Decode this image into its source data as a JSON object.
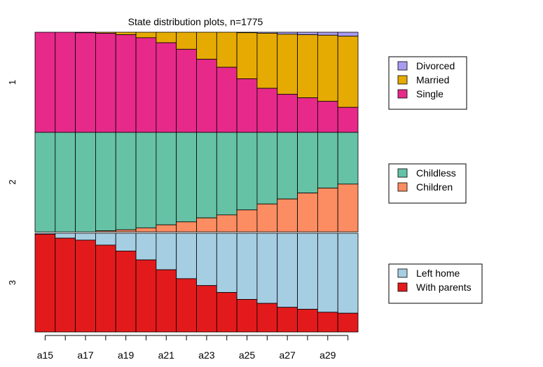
{
  "chart_data": {
    "type": "bar",
    "title": "State distribution plots, n=1775",
    "x": [
      "a15",
      "a16",
      "a17",
      "a18",
      "a19",
      "a20",
      "a21",
      "a22",
      "a23",
      "a24",
      "a25",
      "a26",
      "a27",
      "a28",
      "a29",
      "a30"
    ],
    "x_tick_labels": [
      "a15",
      "a17",
      "a19",
      "a21",
      "a23",
      "a25",
      "a27",
      "a29"
    ],
    "ylim": [
      0,
      1
    ],
    "grid": false,
    "legend_placement": "right",
    "panels": [
      {
        "label": "1",
        "series": [
          {
            "name": "Divorced",
            "color": "#a89cf0",
            "values": [
              0.0,
              0.0,
              0.0,
              0.0,
              0.0,
              0.0,
              0.0,
              0.0,
              0.0,
              0.0,
              0.005,
              0.01,
              0.02,
              0.025,
              0.03,
              0.04
            ]
          },
          {
            "name": "Married",
            "color": "#e6ab02",
            "values": [
              0.0,
              0.0,
              0.005,
              0.01,
              0.025,
              0.055,
              0.105,
              0.17,
              0.27,
              0.35,
              0.46,
              0.55,
              0.6,
              0.63,
              0.66,
              0.71
            ]
          },
          {
            "name": "Single",
            "color": "#e7298a",
            "values": [
              1.0,
              1.0,
              0.995,
              0.99,
              0.975,
              0.945,
              0.895,
              0.83,
              0.73,
              0.65,
              0.535,
              0.44,
              0.38,
              0.345,
              0.31,
              0.25
            ]
          }
        ]
      },
      {
        "label": "2",
        "series": [
          {
            "name": "Childless",
            "color": "#66c2a5",
            "values": [
              1.0,
              1.0,
              1.0,
              0.99,
              0.98,
              0.96,
              0.93,
              0.9,
              0.86,
              0.83,
              0.78,
              0.72,
              0.67,
              0.61,
              0.56,
              0.52
            ]
          },
          {
            "name": "Children",
            "color": "#fc8d62",
            "values": [
              0.0,
              0.0,
              0.0,
              0.01,
              0.02,
              0.04,
              0.07,
              0.1,
              0.14,
              0.17,
              0.22,
              0.28,
              0.33,
              0.39,
              0.44,
              0.48
            ]
          }
        ]
      },
      {
        "label": "3",
        "series": [
          {
            "name": "Left home",
            "color": "#a6cee3",
            "values": [
              0.01,
              0.05,
              0.07,
              0.12,
              0.18,
              0.27,
              0.37,
              0.46,
              0.53,
              0.6,
              0.67,
              0.71,
              0.75,
              0.77,
              0.8,
              0.81
            ]
          },
          {
            "name": "With parents",
            "color": "#e31a1c",
            "values": [
              0.99,
              0.95,
              0.93,
              0.88,
              0.82,
              0.73,
              0.63,
              0.54,
              0.47,
              0.4,
              0.33,
              0.29,
              0.25,
              0.23,
              0.2,
              0.19
            ]
          }
        ]
      }
    ],
    "legends": [
      {
        "panel": "1",
        "entries": [
          {
            "label": "Divorced",
            "color": "#a89cf0"
          },
          {
            "label": "Married",
            "color": "#e6ab02"
          },
          {
            "label": "Single",
            "color": "#e7298a"
          }
        ]
      },
      {
        "panel": "2",
        "entries": [
          {
            "label": "Childless",
            "color": "#66c2a5"
          },
          {
            "label": "Children",
            "color": "#fc8d62"
          }
        ]
      },
      {
        "panel": "3",
        "entries": [
          {
            "label": "Left home",
            "color": "#a6cee3"
          },
          {
            "label": "With parents",
            "color": "#e31a1c"
          }
        ]
      }
    ]
  }
}
